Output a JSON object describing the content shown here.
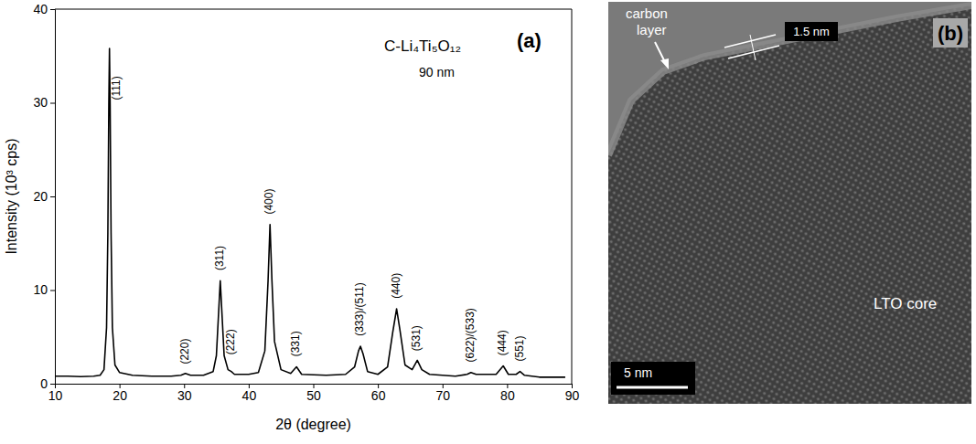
{
  "chart_data": {
    "type": "line",
    "panel_label": "(a)",
    "compound": "C-Li₄Ti₅O₁₂",
    "size_label": "90 nm",
    "x_label": "2θ (degree)",
    "y_label": "Intensity (10³ cps)",
    "color": "#000000",
    "x": [
      10,
      12,
      14,
      16,
      17,
      17.6,
      18.0,
      18.2,
      18.35,
      18.45,
      18.55,
      18.7,
      18.9,
      19.3,
      20,
      22,
      25,
      28,
      29.5,
      30.2,
      31,
      33,
      34.5,
      35.0,
      35.3,
      35.6,
      35.9,
      36.2,
      36.8,
      37.3,
      37.8,
      40,
      41.5,
      42.5,
      43.0,
      43.3,
      43.6,
      44.0,
      45,
      46.5,
      47.4,
      48.2,
      52,
      55,
      56.4,
      57.0,
      57.3,
      57.7,
      58.4,
      60,
      61.5,
      62.3,
      62.9,
      63.4,
      64.2,
      65.3,
      66.1,
      66.8,
      68,
      72,
      73.8,
      74.4,
      75.2,
      78.3,
      79.4,
      80.2,
      81.4,
      82.0,
      82.7,
      85,
      89
    ],
    "values": [
      0.8,
      0.8,
      0.75,
      0.8,
      0.9,
      1.5,
      6,
      16,
      30,
      35.8,
      30,
      16,
      6,
      2.0,
      1.2,
      0.9,
      0.8,
      0.8,
      0.9,
      1.1,
      0.9,
      0.9,
      1.3,
      3.0,
      7,
      11.0,
      7,
      3.0,
      1.5,
      1.3,
      1.0,
      1.0,
      1.2,
      3.5,
      11,
      17.0,
      11,
      4.5,
      1.5,
      1.1,
      1.8,
      1.0,
      0.9,
      1.0,
      1.8,
      3.5,
      4.0,
      3.2,
      1.3,
      1.0,
      1.8,
      5.5,
      8.0,
      5.8,
      2.0,
      1.5,
      2.5,
      1.5,
      1.0,
      0.8,
      1.0,
      1.2,
      1.0,
      1.0,
      1.9,
      1.0,
      1.0,
      1.3,
      0.9,
      0.7,
      0.7
    ],
    "xlim": [
      10,
      90
    ],
    "xticks": [
      10,
      20,
      30,
      40,
      50,
      60,
      70,
      80,
      90
    ],
    "ylim": [
      0,
      40
    ],
    "yticks": [
      0,
      10,
      20,
      30,
      40
    ],
    "peak_labels": [
      {
        "label": "(111)",
        "x": 19.6,
        "y": 30
      },
      {
        "label": "(220)",
        "x": 30.2,
        "y": 1.8
      },
      {
        "label": "(311)",
        "x": 35.6,
        "y": 11.8
      },
      {
        "label": "(222)",
        "x": 37.3,
        "y": 2.8
      },
      {
        "label": "(400)",
        "x": 43.3,
        "y": 17.8
      },
      {
        "label": "(331)",
        "x": 47.4,
        "y": 2.6
      },
      {
        "label": "(333)/(511)",
        "x": 57.3,
        "y": 4.8
      },
      {
        "label": "(440)",
        "x": 62.9,
        "y": 8.8
      },
      {
        "label": "(531)",
        "x": 66.1,
        "y": 3.2
      },
      {
        "label": "(622)/(533)",
        "x": 74.4,
        "y": 2.0
      },
      {
        "label": "(444)",
        "x": 79.4,
        "y": 2.7
      },
      {
        "label": "(551)",
        "x": 82.0,
        "y": 2.1
      }
    ]
  },
  "tem_image": {
    "panel_label": "(b)",
    "carbon_label": "carbon layer",
    "core_label": "LTO core",
    "thickness_label": "1.5 nm",
    "scale_bar_label": "5 nm"
  }
}
